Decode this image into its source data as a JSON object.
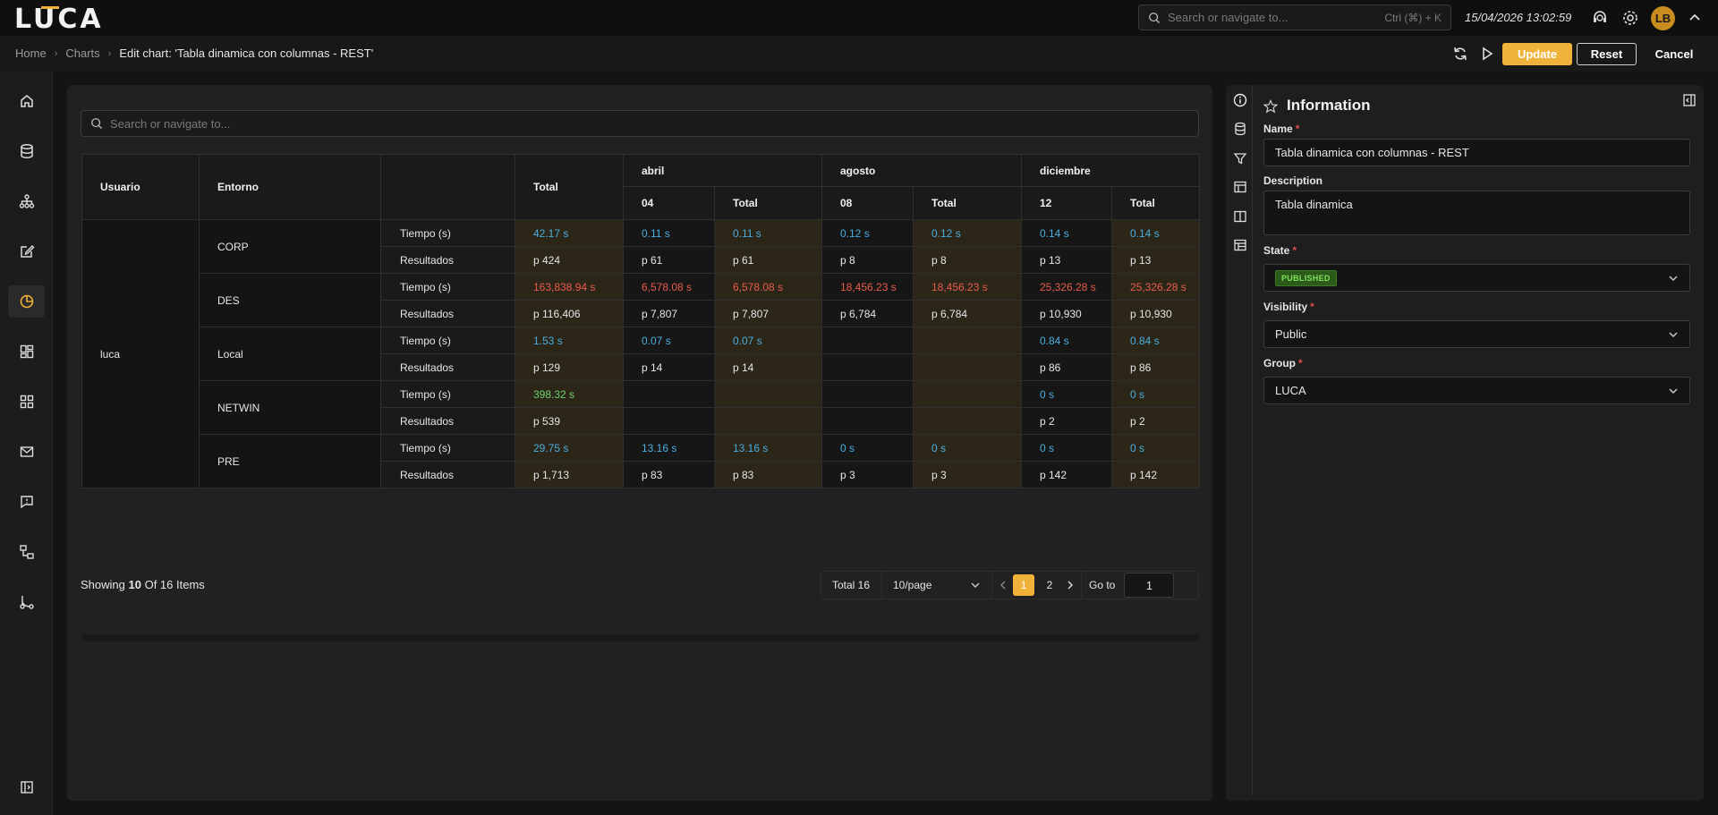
{
  "app": {
    "logo": "LUCA"
  },
  "topbar": {
    "search_placeholder": "Search or navigate to...",
    "search_shortcut": "Ctrl (⌘) + K",
    "datetime": "15/04/2026 13:02:59",
    "avatar_initials": "LB"
  },
  "breadcrumb": {
    "home": "Home",
    "charts": "Charts",
    "current": "Edit chart: 'Tabla dinamica con columnas - REST'"
  },
  "actions": {
    "update": "Update",
    "reset": "Reset",
    "cancel": "Cancel"
  },
  "sidebar": {
    "icons": [
      "home-icon",
      "database-icon",
      "hierarchy-icon",
      "edit-icon",
      "chart-icon",
      "dashboard-icon",
      "apps-icon",
      "mail-icon",
      "message-icon",
      "flow-icon",
      "branch-icon",
      "collapse-sidebar-icon"
    ]
  },
  "main": {
    "search_placeholder": "Search or navigate to...",
    "table": {
      "headers": {
        "usuario": "Usuario",
        "entorno": "Entorno",
        "total": "Total"
      },
      "months": [
        {
          "name": "abril",
          "day": "04",
          "total_label": "Total"
        },
        {
          "name": "agosto",
          "day": "08",
          "total_label": "Total"
        },
        {
          "name": "diciembre",
          "day": "12",
          "total_label": "Total"
        }
      ],
      "user": "luca",
      "groups": [
        {
          "entorno": "CORP",
          "rows": [
            {
              "metric": "Tiempo (s)",
              "color": "blue",
              "cells": [
                "42.17 s",
                "0.11 s",
                "0.11 s",
                "0.12 s",
                "0.12 s",
                "0.14 s",
                "0.14 s"
              ]
            },
            {
              "metric": "Resultados",
              "color": "",
              "cells": [
                "p 424",
                "p 61",
                "p 61",
                "p 8",
                "p 8",
                "p 13",
                "p 13"
              ]
            }
          ]
        },
        {
          "entorno": "DES",
          "rows": [
            {
              "metric": "Tiempo (s)",
              "color": "red",
              "cells": [
                "163,838.94 s",
                "6,578.08 s",
                "6,578.08 s",
                "18,456.23 s",
                "18,456.23 s",
                "25,326.28 s",
                "25,326.28 s"
              ]
            },
            {
              "metric": "Resultados",
              "color": "",
              "cells": [
                "p 116,406",
                "p 7,807",
                "p 7,807",
                "p 6,784",
                "p 6,784",
                "p 10,930",
                "p 10,930"
              ]
            }
          ]
        },
        {
          "entorno": "Local",
          "rows": [
            {
              "metric": "Tiempo (s)",
              "color": "blue",
              "cells": [
                "1.53 s",
                "0.07 s",
                "0.07 s",
                "",
                "",
                "0.84 s",
                "0.84 s"
              ]
            },
            {
              "metric": "Resultados",
              "color": "",
              "cells": [
                "p 129",
                "p 14",
                "p 14",
                "",
                "",
                "p 86",
                "p 86"
              ]
            }
          ]
        },
        {
          "entorno": "NETWIN",
          "rows": [
            {
              "metric": "Tiempo (s)",
              "color": "blue",
              "first_color": "green",
              "cells": [
                "398.32 s",
                "",
                "",
                "",
                "",
                "0 s",
                "0 s"
              ]
            },
            {
              "metric": "Resultados",
              "color": "",
              "cells": [
                "p 539",
                "",
                "",
                "",
                "",
                "p 2",
                "p 2"
              ]
            }
          ]
        },
        {
          "entorno": "PRE",
          "rows": [
            {
              "metric": "Tiempo (s)",
              "color": "blue",
              "cells": [
                "29.75 s",
                "13.16 s",
                "13.16 s",
                "0 s",
                "0 s",
                "0 s",
                "0 s"
              ]
            },
            {
              "metric": "Resultados",
              "color": "",
              "cells": [
                "p 1,713",
                "p 83",
                "p 83",
                "p 3",
                "p 3",
                "p 142",
                "p 142"
              ]
            }
          ]
        }
      ]
    },
    "showing": {
      "prefix": "Showing",
      "count": "10",
      "of": "Of 16 Items"
    },
    "pagination": {
      "total": "Total 16",
      "per_page": "10/page",
      "pages": [
        "1",
        "2"
      ],
      "current": "1",
      "goto_label": "Go to",
      "goto_value": "1"
    }
  },
  "info_panel": {
    "title": "Information",
    "name_label": "Name",
    "name_value": "Tabla dinamica con columnas - REST",
    "description_label": "Description",
    "description_value": "Tabla dinamica",
    "state_label": "State",
    "state_value": "PUBLISHED",
    "visibility_label": "Visibility",
    "visibility_value": "Public",
    "group_label": "Group",
    "group_value": "LUCA"
  },
  "colors": {
    "accent": "#f0b23a",
    "blue": "#4aaee0",
    "red": "#ea5b4b",
    "green": "#6fd46f"
  }
}
